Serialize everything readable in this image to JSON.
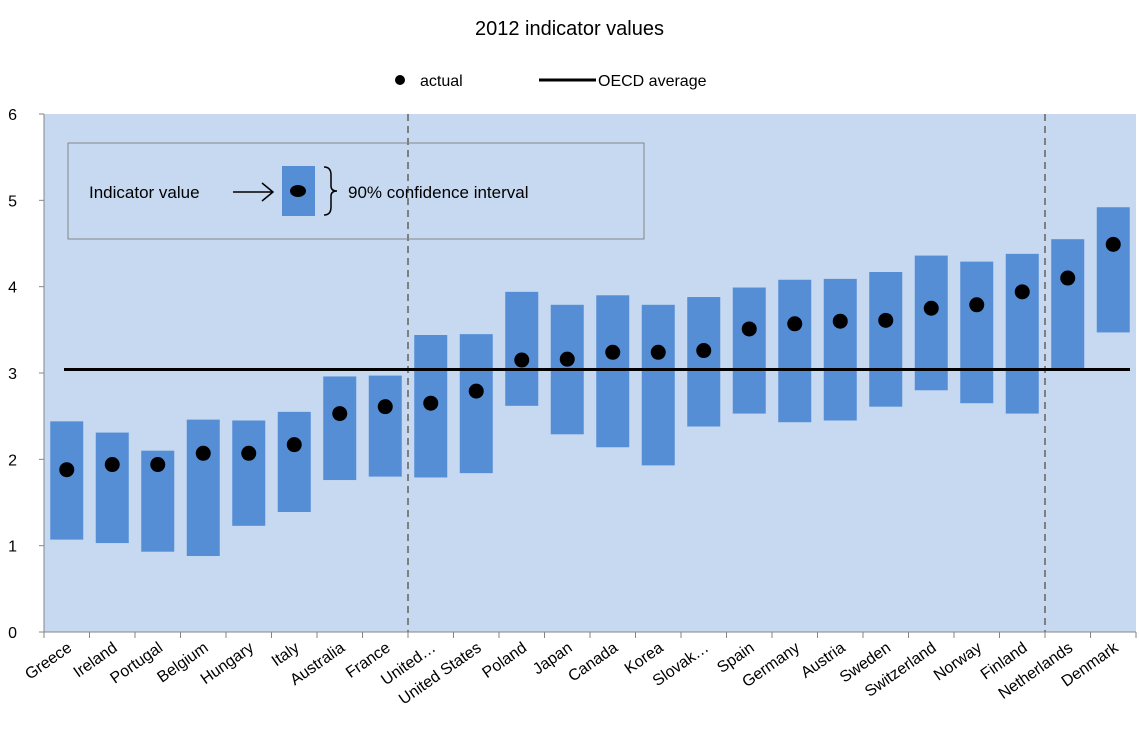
{
  "chart_data": {
    "type": "scatter",
    "title": "2012 indicator values",
    "xlabel": "",
    "ylabel": "",
    "ylim": [
      0,
      6
    ],
    "yticks": [
      "0",
      "1",
      "2",
      "3",
      "4",
      "5",
      "6"
    ],
    "grid": false,
    "legend": {
      "placement": "top-center",
      "entries": [
        {
          "label": "actual",
          "marker": "dot"
        },
        {
          "label": "OECD average",
          "marker": "line"
        }
      ]
    },
    "categories": [
      "Greece",
      "Ireland",
      "Portugal",
      "Belgium",
      "Hungary",
      "Italy",
      "Australia",
      "France",
      "United…",
      "United States",
      "Poland",
      "Japan",
      "Canada",
      "Korea",
      "Slovak…",
      "Spain",
      "Germany",
      "Austria",
      "Sweden",
      "Switzerland",
      "Norway",
      "Finland",
      "Netherlands",
      "Denmark"
    ],
    "series": [
      {
        "name": "actual",
        "values": [
          1.88,
          1.94,
          1.94,
          2.07,
          2.07,
          2.17,
          2.53,
          2.61,
          2.65,
          2.79,
          3.15,
          3.16,
          3.24,
          3.24,
          3.26,
          3.51,
          3.57,
          3.6,
          3.61,
          3.75,
          3.79,
          3.94,
          4.1,
          4.49
        ]
      },
      {
        "name": "90% confidence interval low",
        "values": [
          1.07,
          1.03,
          0.93,
          0.88,
          1.23,
          1.39,
          1.76,
          1.8,
          1.79,
          1.84,
          2.62,
          2.29,
          2.14,
          1.93,
          2.38,
          2.53,
          2.43,
          2.45,
          2.61,
          2.8,
          2.65,
          2.53,
          3.04,
          3.47
        ]
      },
      {
        "name": "90% confidence interval high",
        "values": [
          2.44,
          2.31,
          2.1,
          2.46,
          2.45,
          2.55,
          2.96,
          2.97,
          3.44,
          3.45,
          3.94,
          3.79,
          3.9,
          3.79,
          3.88,
          3.99,
          4.08,
          4.09,
          4.17,
          4.36,
          4.29,
          4.38,
          4.55,
          4.92
        ]
      }
    ],
    "reference_line": {
      "label": "OECD average",
      "value": 3.04
    },
    "group_dividers_after": [
      "France",
      "Finland"
    ],
    "annotation": {
      "indicator_label": "Indicator value",
      "interval_label": "90% confidence interval"
    },
    "colors": {
      "plot_background": "#C6D9F1",
      "interval_bar": "#558ED5",
      "marker": "#000000",
      "average_line": "#000000",
      "divider": "#7F7F7F"
    }
  }
}
